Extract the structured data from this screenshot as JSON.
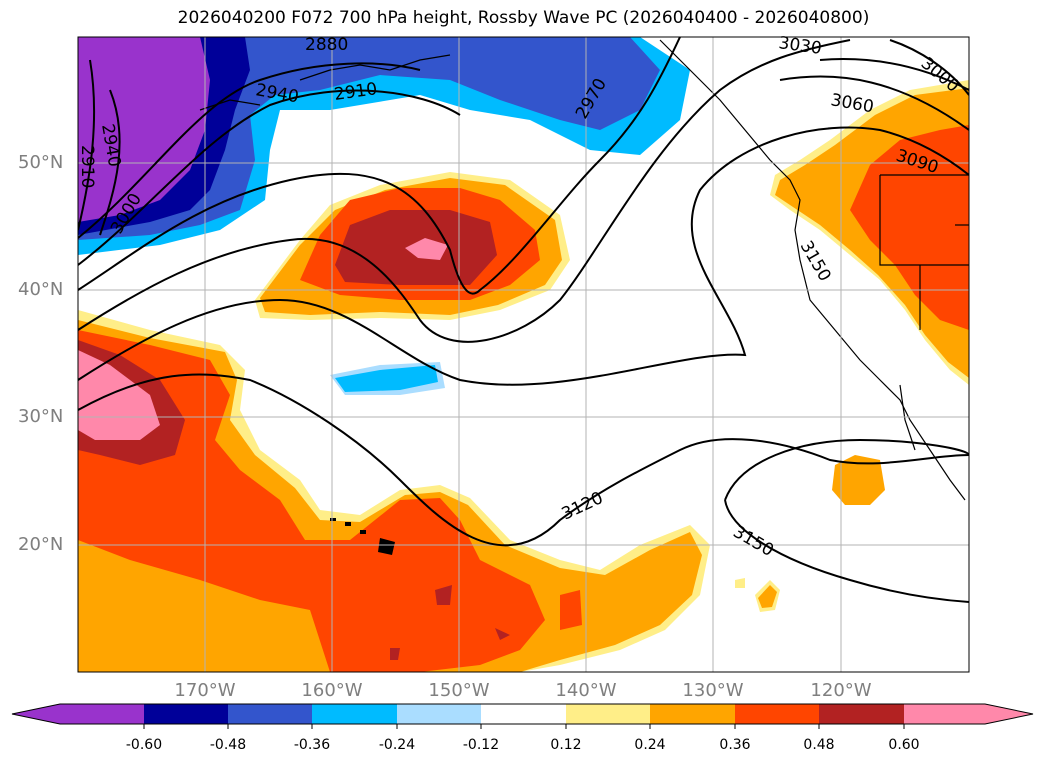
{
  "title": "2026040200 F072 700 hPa height, Rossby Wave PC (2026040400 - 2026040800)",
  "map": {
    "lat_labels": [
      "50°N",
      "40°N",
      "30°N",
      "20°N"
    ],
    "lon_labels": [
      "170°W",
      "160°W",
      "150°W",
      "140°W",
      "130°W",
      "120°W"
    ],
    "contour_labels": [
      "2880",
      "2940",
      "2910",
      "2970",
      "3030",
      "3000",
      "3060",
      "3090",
      "2910",
      "2940",
      "3000",
      "3150",
      "3120",
      "3150"
    ]
  },
  "colorbar": {
    "ticks": [
      "-0.60",
      "-0.48",
      "-0.36",
      "-0.24",
      "-0.12",
      "0.12",
      "0.24",
      "0.36",
      "0.48",
      "0.60"
    ],
    "colors": [
      "#9933cc",
      "#000099",
      "#3355cc",
      "#00bbff",
      "#aaddff",
      "#ffffff",
      "#ffee88",
      "#ffa500",
      "#ff4500",
      "#b22222",
      "#ff88aa",
      "#ff88aa"
    ]
  },
  "palette": {
    "purple": "#9933cc",
    "navy": "#000099",
    "blue": "#3355cc",
    "cyan": "#00bbff",
    "lightblue": "#aaddff",
    "yellow": "#ffee88",
    "orange": "#ffa500",
    "redorange": "#ff4500",
    "darkred": "#b22222",
    "pink": "#ff88aa"
  }
}
